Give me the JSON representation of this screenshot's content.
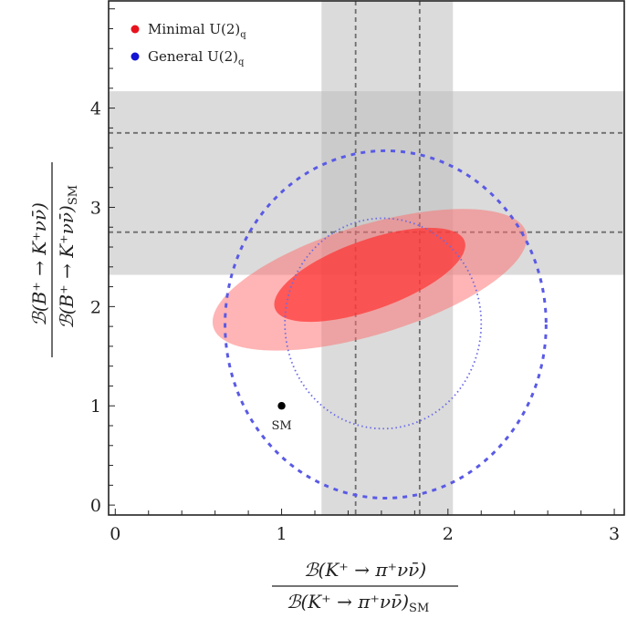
{
  "chart_data": {
    "type": "scatter",
    "title": "",
    "xlabel": {
      "numerator": "ℬ(K⁺ → π⁺νν̄)",
      "denominator": "ℬ(K⁺ → π⁺νν̄)",
      "denominator_subscript": "SM"
    },
    "ylabel": {
      "numerator": "ℬ(B⁺ → K⁺νν̄)",
      "denominator": "ℬ(B⁺ → K⁺νν̄)",
      "denominator_subscript": "SM"
    },
    "xlim": [
      -0.04,
      3.06
    ],
    "ylim": [
      -0.1,
      5.08
    ],
    "x_ticks": [
      0,
      1,
      2,
      3
    ],
    "x_tick_labels": [
      "0",
      "1",
      "2",
      "3"
    ],
    "y_ticks": [
      0,
      1,
      2,
      3,
      4
    ],
    "y_tick_labels": [
      "0",
      "1",
      "2",
      "3",
      "4"
    ],
    "minor_tick_step": 0.2,
    "grid": false,
    "legend": {
      "placement": "top-left",
      "entries": [
        {
          "label": "Minimal U(2)",
          "subscript": "q",
          "color": "#e8121c"
        },
        {
          "label": "General U(2)",
          "subscript": "q",
          "color": "#1414d2"
        }
      ]
    },
    "bands": [
      {
        "name": "vertical-band-kpinunu",
        "axis": "x",
        "range": [
          1.24,
          2.03
        ],
        "center_lines": [
          1.445,
          1.83
        ],
        "color": "#bdbdbd"
      },
      {
        "name": "horizontal-band-bknunu",
        "axis": "y",
        "range": [
          2.32,
          4.17
        ],
        "center_lines": [
          2.75,
          3.75
        ],
        "color": "#bdbdbd"
      }
    ],
    "regions": [
      {
        "name": "minimal-u2q-outer",
        "series": "Minimal U(2)q",
        "kind": "ellipse-fill",
        "confidence": "outer",
        "center": [
          1.53,
          2.27
        ],
        "major_vec": [
          0.94,
          0.48
        ],
        "minor_vec": [
          0.096,
          -0.528
        ],
        "color": "#ff6b6b",
        "opacity": 0.5
      },
      {
        "name": "minimal-u2q-inner",
        "series": "Minimal U(2)q",
        "kind": "ellipse-fill",
        "confidence": "inner",
        "center": [
          1.53,
          2.32
        ],
        "major_vec": [
          0.57,
          0.34
        ],
        "minor_vec": [
          0.07,
          -0.33
        ],
        "color": "#ff3030",
        "opacity": 0.7
      },
      {
        "name": "general-u2q-outer",
        "series": "General U(2)q",
        "kind": "ellipse-dashed",
        "center": [
          1.625,
          1.82
        ],
        "rx": 0.965,
        "ry": 1.75,
        "color": "#5a5ae6"
      },
      {
        "name": "general-u2q-inner",
        "series": "General U(2)q",
        "kind": "ellipse-dotted",
        "center": [
          1.61,
          1.83
        ],
        "rx": 0.59,
        "ry": 1.06,
        "color": "#6a6ae6"
      }
    ],
    "points": [
      {
        "name": "SM",
        "x": 1.0,
        "y": 1.0,
        "label": "SM",
        "color": "#000000"
      }
    ]
  }
}
